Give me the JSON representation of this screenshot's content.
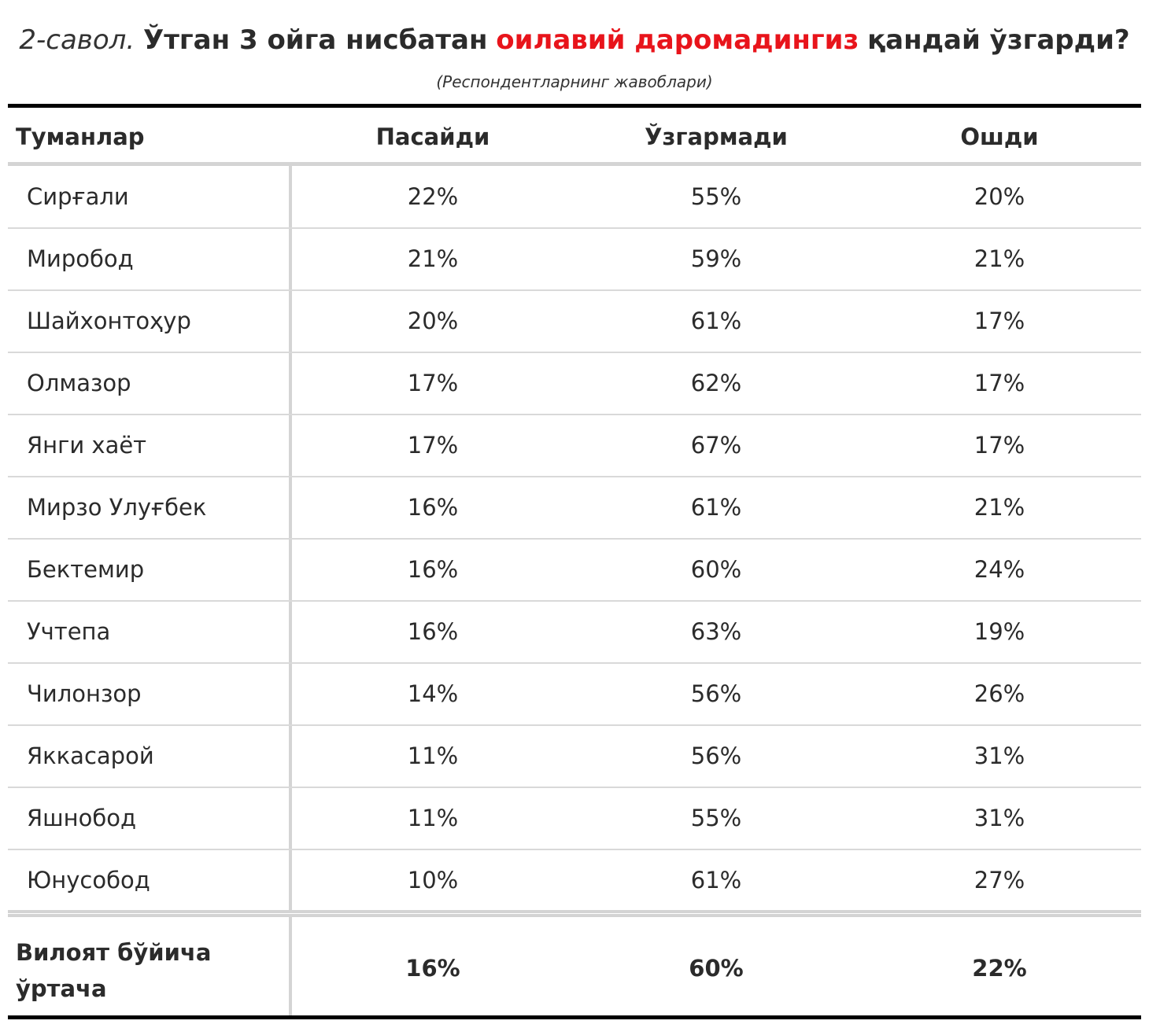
{
  "title": {
    "question": "2-савол.",
    "before": "Ўтган 3 ойга нисбатан",
    "highlight": "оилавий даромадингиз",
    "after": "қандай ўзгарди?"
  },
  "subtitle": "(Респондентларнинг жавоблари)",
  "colors": {
    "highlight": "#e8141b",
    "rule": "#000000",
    "separator": "#d4d4d4"
  },
  "chart_data": {
    "type": "table",
    "columns": [
      "Туманлар",
      "Пасайди",
      "Ўзгармади",
      "Ошди"
    ],
    "rows": [
      {
        "district": "Сирғали",
        "values": [
          "22%",
          "55%",
          "20%"
        ]
      },
      {
        "district": "Миробод",
        "values": [
          "21%",
          "59%",
          "21%"
        ]
      },
      {
        "district": "Шайхонтоҳур",
        "values": [
          "20%",
          "61%",
          "17%"
        ]
      },
      {
        "district": "Олмазор",
        "values": [
          "17%",
          "62%",
          "17%"
        ]
      },
      {
        "district": "Янги хаёт",
        "values": [
          "17%",
          "67%",
          "17%"
        ]
      },
      {
        "district": "Мирзо Улуғбек",
        "values": [
          "16%",
          "61%",
          "21%"
        ]
      },
      {
        "district": "Бектемир",
        "values": [
          "16%",
          "60%",
          "24%"
        ]
      },
      {
        "district": "Учтепа",
        "values": [
          "16%",
          "63%",
          "19%"
        ]
      },
      {
        "district": "Чилонзор",
        "values": [
          "14%",
          "56%",
          "26%"
        ]
      },
      {
        "district": "Яккасарой",
        "values": [
          "11%",
          "56%",
          "31%"
        ]
      },
      {
        "district": "Яшнобод",
        "values": [
          "11%",
          "55%",
          "31%"
        ]
      },
      {
        "district": "Юнусобод",
        "values": [
          "10%",
          "61%",
          "27%"
        ]
      }
    ],
    "footer": {
      "label_line1": "Вилоят бўйича",
      "label_line2": "ўртача",
      "values": [
        "16%",
        "60%",
        "22%"
      ]
    }
  }
}
